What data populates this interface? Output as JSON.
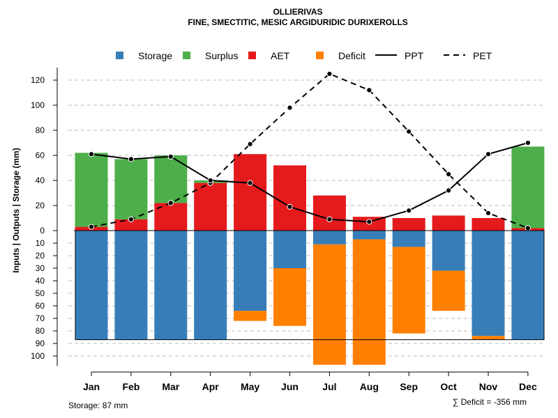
{
  "chart_data": {
    "type": "bar",
    "title": "OLLIERIVAS",
    "subtitle": "FINE, SMECTITIC, MESIC ARGIDURIDIC DURIXEROLLS",
    "ylabel": "Inputs | Outputs | Storage    (mm)",
    "categories": [
      "Jan",
      "Feb",
      "Mar",
      "Apr",
      "May",
      "Jun",
      "Jul",
      "Aug",
      "Sep",
      "Oct",
      "Nov",
      "Dec"
    ],
    "upper_ticks": [
      0,
      20,
      40,
      60,
      80,
      100,
      120
    ],
    "upper_tick_labels": [
      "0",
      "20",
      "40",
      "60",
      "80",
      "100",
      "120"
    ],
    "lower_ticks": [
      10,
      20,
      30,
      40,
      50,
      60,
      70,
      80,
      90,
      100
    ],
    "lower_tick_labels": [
      "10",
      "20",
      "30",
      "40",
      "50",
      "60",
      "70",
      "80",
      "90",
      "100"
    ],
    "ylim_upper": [
      0,
      130
    ],
    "ylim_lower": [
      0,
      108
    ],
    "storage_capacity": 87,
    "series": [
      {
        "name": "Storage",
        "color": "#377eb8",
        "values": [
          87,
          87,
          87,
          87,
          64,
          30,
          11,
          7,
          13,
          32,
          84,
          87
        ]
      },
      {
        "name": "Deficit",
        "color": "#ff7f00",
        "values": [
          0,
          0,
          0,
          0,
          8,
          46,
          96,
          100,
          69,
          32,
          3,
          0
        ]
      },
      {
        "name": "AET",
        "color": "#e41a1c",
        "values": [
          3,
          9,
          22,
          38,
          61,
          52,
          28,
          11,
          10,
          12,
          10,
          2
        ]
      },
      {
        "name": "Surplus",
        "color": "#4daf4a",
        "values": [
          59,
          48,
          38,
          2,
          0,
          0,
          0,
          0,
          0,
          0,
          0,
          65
        ]
      },
      {
        "name": "PPT",
        "color": "#000000",
        "values": [
          61,
          57,
          59,
          40,
          38,
          19,
          9,
          7,
          16,
          32,
          61,
          70
        ]
      },
      {
        "name": "PET",
        "color": "#000000",
        "values": [
          3,
          9,
          22,
          38,
          69,
          98,
          125,
          112,
          79,
          45,
          14,
          2
        ]
      }
    ],
    "legend": [
      {
        "label": "Storage",
        "kind": "box",
        "color": "#377eb8"
      },
      {
        "label": "Surplus",
        "kind": "box",
        "color": "#4daf4a"
      },
      {
        "label": "AET",
        "kind": "box",
        "color": "#e41a1c"
      },
      {
        "label": "Deficit",
        "kind": "box",
        "color": "#ff7f00"
      },
      {
        "label": "PPT",
        "kind": "solid"
      },
      {
        "label": "PET",
        "kind": "dashed"
      }
    ],
    "legend_position": "top",
    "grid": true,
    "footer_left": "Storage: 87 mm",
    "footer_right": "∑ Deficit = -356 mm"
  }
}
